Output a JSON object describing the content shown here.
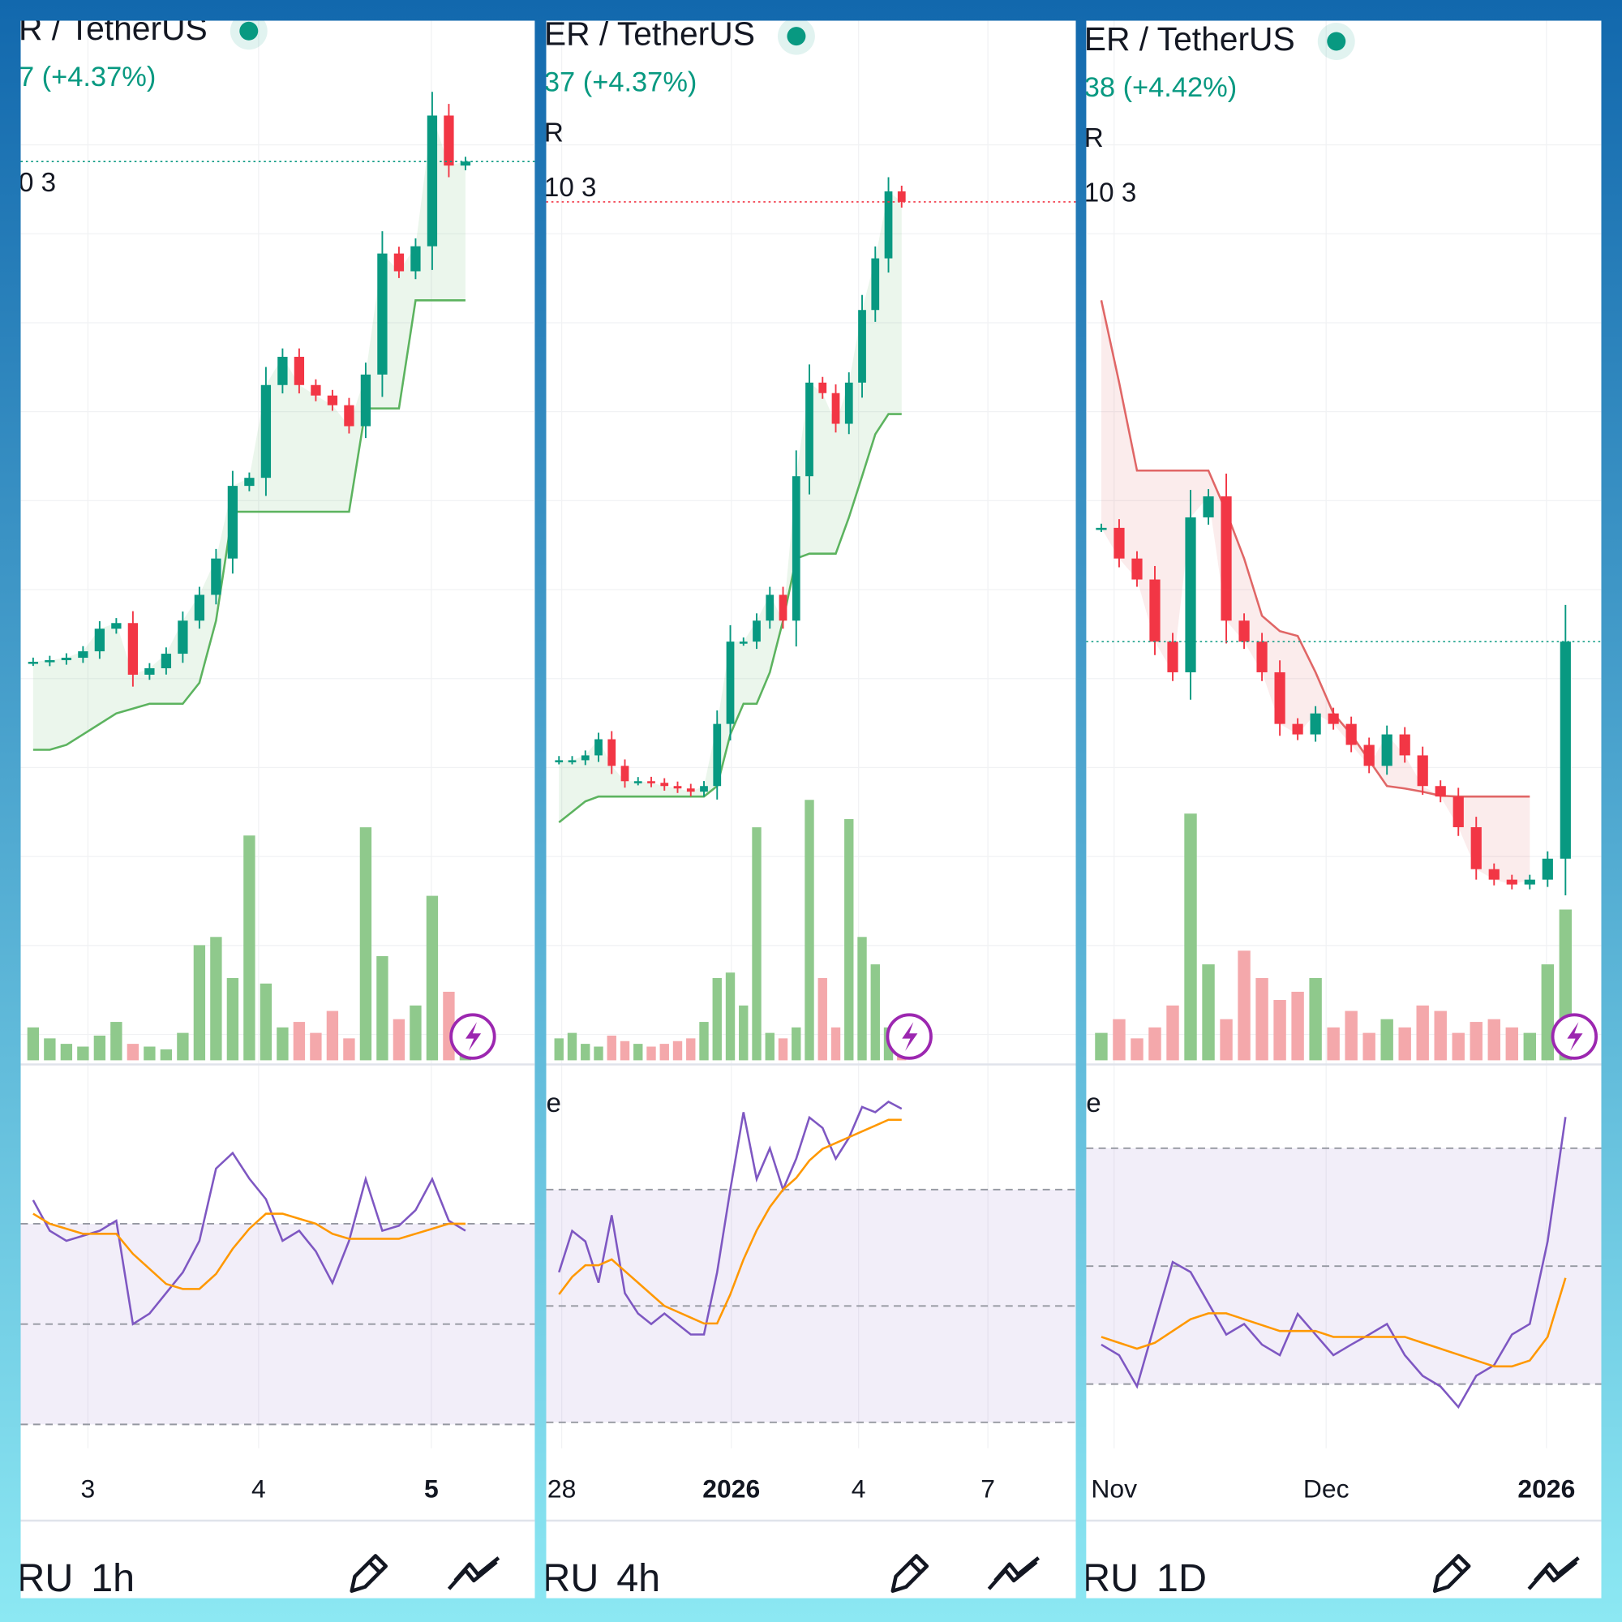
{
  "panels": [
    {
      "pair": "R / TetherUS",
      "change": "7 (+4.37%)",
      "indicator": "0 3",
      "x_labels": [
        "3",
        "4",
        "5"
      ],
      "toolbar_left": "RU",
      "interval": "1h",
      "closes": [
        30.8,
        31.0,
        31.3,
        32.1,
        34.9,
        35.6,
        29.2,
        30.0,
        31.8,
        35.9,
        39.1,
        43.6,
        52.6,
        53.6,
        65.1,
        68.6,
        65.1,
        63.8,
        62.6,
        60.0,
        66.4,
        81.4,
        79.2,
        82.3,
        98.5,
        92.3,
        92.8
      ],
      "trend": [
        19.9,
        19.9,
        20.5,
        21.8,
        23.1,
        24.4,
        25.0,
        25.6,
        25.6,
        25.6,
        28.2,
        35.9,
        49.4,
        49.4,
        49.4,
        49.4,
        49.4,
        49.4,
        49.4,
        49.4,
        62.2,
        62.2,
        62.2,
        75.6,
        75.6,
        75.6,
        75.6
      ],
      "trend_color": "#5cb35f",
      "volumes": [
        12,
        8,
        6,
        5,
        9,
        14,
        6,
        5,
        4,
        10,
        42,
        45,
        30,
        82,
        28,
        12,
        14,
        10,
        18,
        8,
        85,
        38,
        15,
        20,
        60,
        25,
        12
      ],
      "rsi": [
        74.7,
        68.6,
        66.6,
        67.6,
        68.6,
        70.6,
        50.0,
        52.1,
        56.2,
        60.3,
        66.6,
        81.0,
        84.1,
        79.0,
        74.9,
        66.6,
        68.6,
        64.5,
        58.2,
        66.6,
        78.9,
        68.6,
        69.6,
        72.7,
        78.9,
        70.6,
        68.6
      ],
      "rsi_ma": [
        72,
        70,
        69,
        68,
        68,
        68,
        64,
        61,
        58,
        57,
        57,
        60,
        65,
        69,
        72,
        72,
        71,
        70,
        68,
        67,
        67,
        67,
        67,
        68,
        69,
        70,
        70
      ],
      "rsi_levels": [
        70,
        50,
        30
      ]
    },
    {
      "pair": "ER / TetherUS",
      "change": "37 (+4.37%)",
      "line3": "R",
      "indicator": "10 3",
      "rsi_label": "e",
      "x_labels": [
        "28",
        "2026",
        "4",
        "7"
      ],
      "toolbar_left": "RU",
      "interval": "4h",
      "closes": [
        18.6,
        18.6,
        19.2,
        21.2,
        17.9,
        16.0,
        16.0,
        15.8,
        15.4,
        15.1,
        14.7,
        15.4,
        23.1,
        33.3,
        33.3,
        35.9,
        39.1,
        35.9,
        53.8,
        65.4,
        64.1,
        60.3,
        65.4,
        74.4,
        80.8,
        89.1,
        87.8
      ],
      "trend": [
        10.9,
        12.2,
        13.5,
        14.1,
        14.1,
        14.1,
        14.1,
        14.1,
        14.1,
        14.1,
        14.1,
        14.1,
        15.4,
        21.8,
        25.6,
        25.6,
        29.5,
        35.9,
        43.6,
        44.2,
        44.2,
        44.2,
        48.7,
        53.8,
        59.0,
        61.5,
        61.5
      ],
      "trend_color": "#5cb35f",
      "volumes": [
        8,
        10,
        6,
        5,
        9,
        7,
        6,
        5,
        6,
        7,
        8,
        14,
        30,
        32,
        20,
        85,
        10,
        8,
        12,
        95,
        30,
        12,
        88,
        45,
        35,
        12,
        5
      ],
      "rsi": [
        55.8,
        62.9,
        61.1,
        54.0,
        65.6,
        52.2,
        48.7,
        46.9,
        48.7,
        46.9,
        45.1,
        45.1,
        55.8,
        70.0,
        83.3,
        71.8,
        77.1,
        70.0,
        75.3,
        82.4,
        80.6,
        75.3,
        78.9,
        84.2,
        83.3,
        85.1,
        83.9
      ],
      "rsi_ma": [
        52,
        55,
        57,
        57,
        58,
        56,
        54,
        52,
        50,
        49,
        48,
        47,
        47,
        52,
        58,
        63,
        67,
        70,
        72,
        75,
        77,
        78,
        79,
        80,
        81,
        82,
        82
      ],
      "rsi_levels": [
        70,
        50,
        30
      ]
    },
    {
      "pair": "ER / TetherUS",
      "change": "38 (+4.42%)",
      "line3": "R",
      "indicator": "10 3",
      "rsi_label": "e",
      "x_labels": [
        "Nov",
        "Dec",
        "2026"
      ],
      "toolbar_left": "RU",
      "interval": "1D",
      "closes": [
        47.4,
        43.6,
        41.0,
        33.3,
        29.5,
        48.7,
        51.3,
        35.9,
        33.3,
        29.5,
        23.1,
        21.8,
        24.4,
        23.1,
        20.5,
        17.9,
        21.8,
        19.2,
        15.4,
        14.1,
        10.3,
        5.1,
        3.8,
        3.2,
        3.8,
        6.4,
        33.3
      ],
      "trend": [
        75.6,
        65.4,
        54.5,
        54.5,
        54.5,
        54.5,
        54.5,
        49.4,
        43.6,
        36.5,
        34.6,
        34.0,
        29.5,
        24.4,
        21.8,
        18.6,
        15.4,
        15.1,
        14.7,
        14.2,
        14.1,
        14.1,
        14.1,
        14.1,
        14.1,
        null,
        null
      ],
      "trend_color": "#e06666",
      "volumes": [
        10,
        15,
        8,
        12,
        20,
        90,
        35,
        15,
        40,
        30,
        22,
        25,
        30,
        12,
        18,
        10,
        15,
        12,
        20,
        18,
        10,
        14,
        15,
        12,
        10,
        35,
        55
      ],
      "rsi": [
        36.7,
        34.9,
        29.6,
        40.2,
        50.7,
        49.0,
        43.7,
        38.4,
        40.2,
        36.7,
        34.9,
        41.9,
        38.4,
        34.9,
        36.7,
        38.4,
        40.2,
        34.9,
        31.4,
        29.6,
        26.1,
        31.4,
        33.2,
        38.4,
        40.2,
        54.2,
        75.3
      ],
      "rsi_ma": [
        38,
        37,
        36,
        37,
        39,
        41,
        42,
        42,
        41,
        40,
        39,
        39,
        39,
        38,
        38,
        38,
        38,
        38,
        37,
        36,
        35,
        34,
        33,
        33,
        34,
        38,
        48
      ],
      "rsi_levels": [
        70,
        50,
        30
      ]
    }
  ]
}
